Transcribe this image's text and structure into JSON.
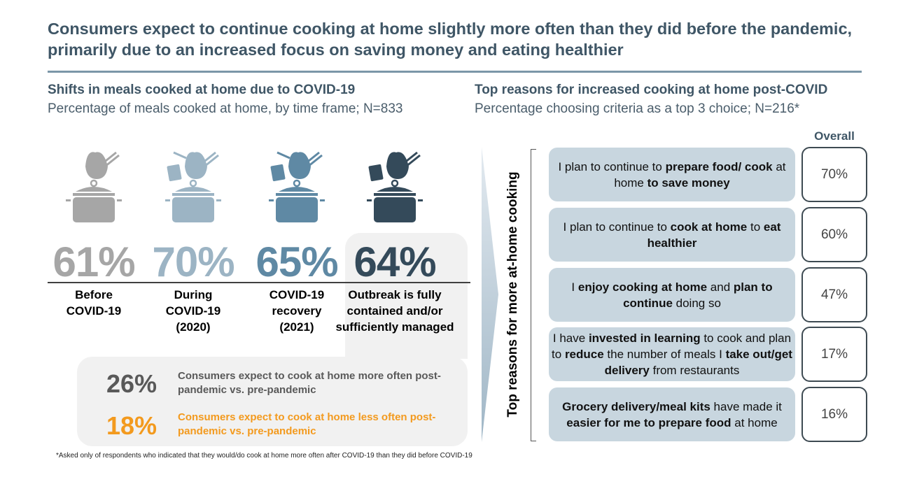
{
  "title": "Consumers expect to continue cooking at home slightly more often than they did before the pandemic, primarily due to an increased focus on saving money and eating healthier",
  "left": {
    "heading": "Shifts in meals cooked at home due to COVID-19",
    "subtitle": "Percentage of meals cooked at home, by time frame; N=833",
    "columns": [
      {
        "value": "61%",
        "label": "Before COVID-19",
        "color": "#a6a6a6"
      },
      {
        "value": "70%",
        "label": "During COVID-19 (2020)",
        "color": "#9cb4c4"
      },
      {
        "value": "65%",
        "label": "COVID-19 recovery (2021)",
        "color": "#5f89a4"
      },
      {
        "value": "64%",
        "label": "Outbreak is fully contained and/or sufficiently managed",
        "color": "#344a5a"
      }
    ],
    "expectations": [
      {
        "value": "26%",
        "text": "Consumers expect to cook at home more often post-pandemic vs. pre-pandemic",
        "color": "#595959"
      },
      {
        "value": "18%",
        "text": "Consumers expect to cook at home less often post-pandemic vs. pre-pandemic",
        "color": "#f39a1e"
      }
    ],
    "footnote": "*Asked only of respondents who indicated that they would/do cook at home more often after COVID-19 than they did before COVID-19"
  },
  "right": {
    "heading": "Top reasons for increased cooking at home post-COVID",
    "subtitle": "Percentage choosing criteria as a top 3 choice; N=216*",
    "vertical_label": "Top reasons for more at-home cooking",
    "column_header": "Overall",
    "reasons": [
      {
        "segments": [
          {
            "t": "I plan to continue to "
          },
          {
            "t": "prepare food/ cook",
            "b": true
          },
          {
            "t": " at home "
          },
          {
            "t": "to save money",
            "b": true
          }
        ],
        "value": "70%"
      },
      {
        "segments": [
          {
            "t": "I plan to continue to "
          },
          {
            "t": "cook at home",
            "b": true
          },
          {
            "t": " to "
          },
          {
            "t": "eat healthier",
            "b": true
          }
        ],
        "value": "60%"
      },
      {
        "segments": [
          {
            "t": "I "
          },
          {
            "t": "enjoy cooking at home",
            "b": true
          },
          {
            "t": " and "
          },
          {
            "t": "plan to continue",
            "b": true
          },
          {
            "t": " doing so"
          }
        ],
        "value": "47%"
      },
      {
        "segments": [
          {
            "t": "I have "
          },
          {
            "t": "invested in learning",
            "b": true
          },
          {
            "t": " to cook and plan to "
          },
          {
            "t": "reduce",
            "b": true
          },
          {
            "t": " the number of meals I "
          },
          {
            "t": "take out/get delivery",
            "b": true
          },
          {
            "t": " from restaurants"
          }
        ],
        "value": "17%"
      },
      {
        "segments": [
          {
            "t": "Grocery delivery/meal kits",
            "b": true
          },
          {
            "t": " have made it "
          },
          {
            "t": "easier for me to prepare food",
            "b": true
          },
          {
            "t": " at home"
          }
        ],
        "value": "16%"
      }
    ]
  }
}
